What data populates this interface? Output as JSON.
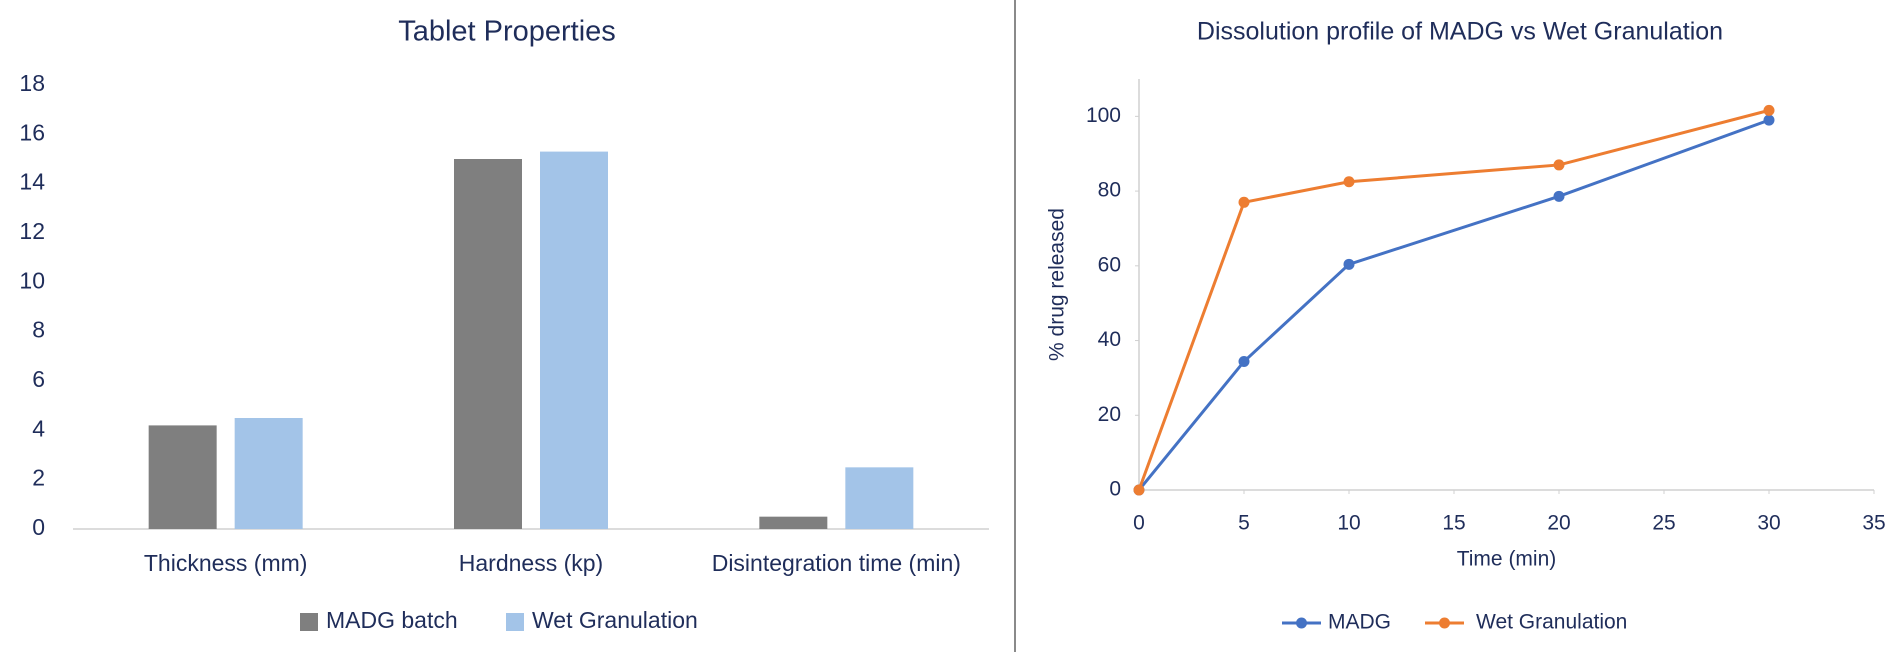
{
  "chart_data": [
    {
      "type": "bar",
      "title": "Tablet Properties",
      "categories": [
        "Thickness (mm)",
        "Hardness (kp)",
        "Disintegration time (min)"
      ],
      "series": [
        {
          "name": "MADG batch",
          "color": "#7f7f7f",
          "values": [
            4.2,
            15.0,
            0.5
          ]
        },
        {
          "name": "Wet Granulation",
          "color": "#a3c4e8",
          "values": [
            4.5,
            15.3,
            2.5
          ]
        }
      ],
      "ylim": [
        0,
        18
      ],
      "yticks": [
        0,
        2,
        4,
        6,
        8,
        10,
        12,
        14,
        16,
        18
      ],
      "legend": "bottom"
    },
    {
      "type": "line",
      "title": "Dissolution profile of MADG vs Wet Granulation",
      "x": [
        0,
        5,
        10,
        20,
        30
      ],
      "series": [
        {
          "name": "MADG",
          "color": "#4472c4",
          "values": [
            0,
            34.4,
            60.4,
            78.6,
            99
          ]
        },
        {
          "name": "Wet Granulation",
          "color": "#ed7d31",
          "values": [
            0,
            77,
            82.5,
            87,
            101.6
          ]
        }
      ],
      "xlabel": "Time (min)",
      "ylabel": "% drug released",
      "xlim": [
        0,
        35
      ],
      "xticks": [
        0,
        5,
        10,
        15,
        20,
        25,
        30,
        35
      ],
      "ylim": [
        0,
        110
      ],
      "yticks": [
        0,
        20,
        40,
        60,
        80,
        100
      ],
      "legend": "bottom"
    }
  ]
}
